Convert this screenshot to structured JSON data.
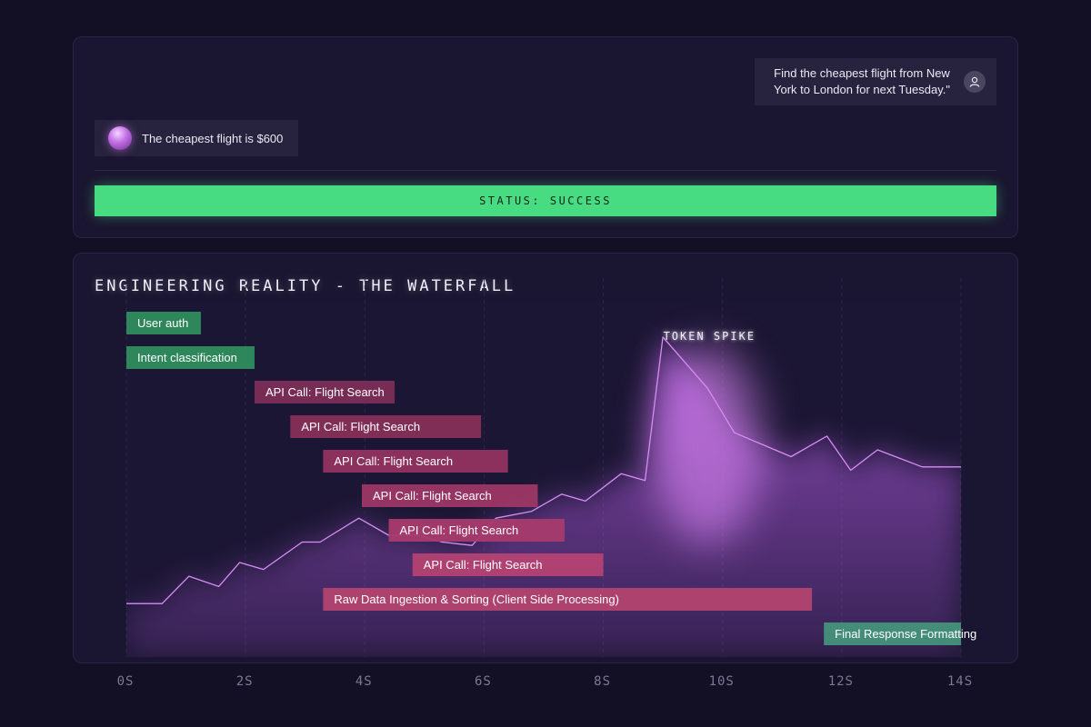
{
  "chat": {
    "user_message": "Find the cheapest flight from New York to London for next Tuesday.\"",
    "assistant_message": "The cheapest flight is $600",
    "status": "STATUS: SUCCESS",
    "user_icon": "user-icon",
    "assistant_icon": "orb-avatar"
  },
  "chart_data": {
    "type": "waterfall",
    "title": "ENGINEERING REALITY - THE WATERFALL",
    "x_unit": "S",
    "xlim": [
      0,
      14
    ],
    "x_ticks": [
      "0S",
      "2S",
      "4S",
      "6S",
      "8S",
      "10S",
      "12S",
      "14S"
    ],
    "spans": [
      {
        "label": "User auth",
        "start": 0.0,
        "end": 1.25,
        "kind": "internal"
      },
      {
        "label": "Intent classification",
        "start": 0.0,
        "end": 2.15,
        "kind": "internal"
      },
      {
        "label": "API Call: Flight Search",
        "start": 2.15,
        "end": 4.5,
        "kind": "api"
      },
      {
        "label": "API Call: Flight Search",
        "start": 2.75,
        "end": 5.95,
        "kind": "api"
      },
      {
        "label": "API Call: Flight Search",
        "start": 3.3,
        "end": 6.4,
        "kind": "api"
      },
      {
        "label": "API Call: Flight Search",
        "start": 3.95,
        "end": 6.9,
        "kind": "api"
      },
      {
        "label": "API Call: Flight Search",
        "start": 4.4,
        "end": 7.35,
        "kind": "api"
      },
      {
        "label": "API Call: Flight Search",
        "start": 4.8,
        "end": 8.0,
        "kind": "api"
      },
      {
        "label": "Raw Data Ingestion & Sorting (Client Side Processing)",
        "start": 3.3,
        "end": 11.5,
        "kind": "processing"
      },
      {
        "label": "Final Response Formatting",
        "start": 11.7,
        "end": 14.0,
        "kind": "final"
      }
    ],
    "token_series": {
      "x": [
        0,
        0.6,
        1.05,
        1.55,
        1.9,
        2.3,
        2.95,
        3.25,
        3.9,
        4.4,
        4.9,
        5.3,
        5.8,
        6.2,
        6.8,
        7.3,
        7.7,
        8.3,
        8.7,
        9.0,
        9.75,
        10.2,
        11.15,
        11.75,
        12.15,
        12.6,
        13.35,
        13.7,
        14.0
      ],
      "y": [
        0.09,
        0.09,
        0.17,
        0.14,
        0.21,
        0.19,
        0.27,
        0.27,
        0.34,
        0.29,
        0.29,
        0.27,
        0.26,
        0.34,
        0.36,
        0.41,
        0.39,
        0.47,
        0.45,
        0.87,
        0.72,
        0.59,
        0.52,
        0.58,
        0.48,
        0.54,
        0.49,
        0.49,
        0.49
      ],
      "ylim": [
        0,
        1
      ]
    },
    "annotation": {
      "label": "TOKEN SPIKE",
      "x": 9.75
    },
    "colors": {
      "internal": "#2f8d5e",
      "final": "#45927a",
      "api": [
        "#7b2d56",
        "#872f5a",
        "#923360",
        "#9d3766",
        "#a83b6d",
        "#b44273"
      ],
      "processing": "#b3436f",
      "token_line": "#d88cf5",
      "token_fill": "#b05ae0",
      "status_success": "#48dc82"
    },
    "grid": true
  }
}
